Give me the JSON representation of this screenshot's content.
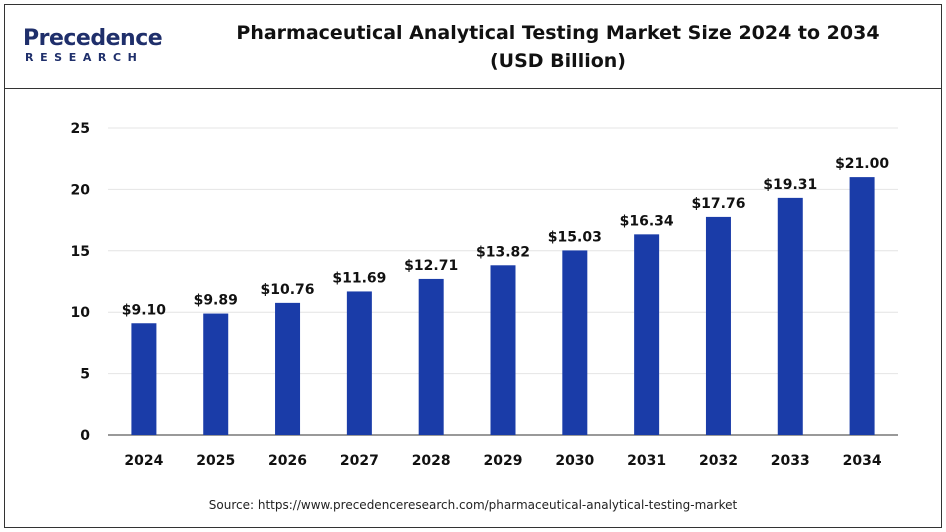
{
  "header": {
    "logo_name": "Precedence",
    "logo_sub": "RESEARCH",
    "title_line1": "Pharmaceutical Analytical Testing Market Size 2024 to 2034",
    "title_line2": "(USD Billion)"
  },
  "source": "Source: https://www.precedenceresearch.com/pharmaceutical-analytical-testing-market",
  "colors": {
    "bar": "#1a3ca8",
    "axis": "#333333",
    "grid": "#e4e4e4"
  },
  "chart_data": {
    "type": "bar",
    "title": "Pharmaceutical Analytical Testing Market Size 2024 to 2034 (USD Billion)",
    "xlabel": "",
    "ylabel": "",
    "categories": [
      "2024",
      "2025",
      "2026",
      "2027",
      "2028",
      "2029",
      "2030",
      "2031",
      "2032",
      "2033",
      "2034"
    ],
    "values": [
      9.1,
      9.89,
      10.76,
      11.69,
      12.71,
      13.82,
      15.03,
      16.34,
      17.76,
      19.31,
      21.0
    ],
    "data_labels": [
      "$9.10",
      "$9.89",
      "$10.76",
      "$11.69",
      "$12.71",
      "$13.82",
      "$15.03",
      "$16.34",
      "$17.76",
      "$19.31",
      "$21.00"
    ],
    "ylim": [
      0,
      25
    ],
    "yticks": [
      0,
      5,
      10,
      15,
      20,
      25
    ],
    "grid": true,
    "legend": "none"
  }
}
